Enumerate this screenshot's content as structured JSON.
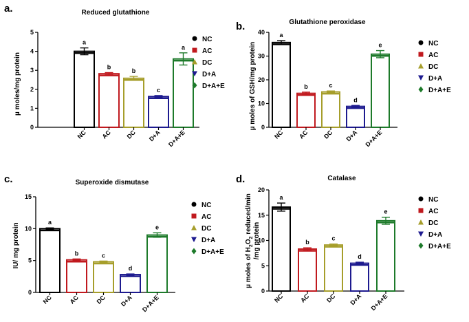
{
  "legend": {
    "entries": [
      "NC",
      "AC",
      "DC",
      "D+A",
      "D+A+E"
    ],
    "colors": [
      "#000000",
      "#c0191e",
      "#a69e2b",
      "#1d1a8f",
      "#1d7a2a"
    ],
    "markers": [
      "circle",
      "square",
      "triangle",
      "triangle-down",
      "diamond"
    ]
  },
  "chart_data": [
    {
      "letter": "a.",
      "type": "bar",
      "title": "Reduced glutathione",
      "ylabel": "µ moles/mg protein",
      "categories": [
        "NC",
        "AC",
        "DC",
        "D+A",
        "D+A+E"
      ],
      "values": [
        4.0,
        2.82,
        2.58,
        1.62,
        3.6
      ],
      "errors": [
        0.18,
        0.06,
        0.1,
        0.05,
        0.32
      ],
      "significance": [
        "a",
        "b",
        "b",
        "c",
        "a"
      ],
      "ylim": [
        0,
        5
      ],
      "yticks": [
        0,
        1,
        2,
        3,
        4,
        5
      ]
    },
    {
      "letter": "b.",
      "type": "bar",
      "title": "Glutathione peroxidase",
      "ylabel": "µ moles of GSH/mg protein",
      "categories": [
        "NC",
        "AC",
        "DC",
        "D+A",
        "D+A+E"
      ],
      "values": [
        35.7,
        14.3,
        14.9,
        8.8,
        30.8
      ],
      "errors": [
        0.8,
        0.5,
        0.4,
        0.4,
        1.5
      ],
      "significance": [
        "a",
        "b",
        "c",
        "d",
        "e"
      ],
      "ylim": [
        0,
        40
      ],
      "yticks": [
        0,
        10,
        20,
        30,
        40
      ]
    },
    {
      "letter": "c.",
      "type": "bar",
      "title": "Superoxide dismutase",
      "ylabel": "IU/ mg protein",
      "categories": [
        "NC",
        "AC",
        "DC",
        "D+A",
        "D+A+E"
      ],
      "values": [
        10.0,
        5.1,
        4.8,
        2.8,
        9.0
      ],
      "errors": [
        0.12,
        0.15,
        0.12,
        0.1,
        0.35
      ],
      "significance": [
        "a",
        "b",
        "c",
        "d",
        "e"
      ],
      "ylim": [
        0,
        15
      ],
      "yticks": [
        0,
        5,
        10,
        15
      ]
    },
    {
      "letter": "d.",
      "type": "bar",
      "title": "Catalase",
      "ylabel_line1": "µ moles of H",
      "ylabel_sub1": "2",
      "ylabel_mid": "O",
      "ylabel_sub2": "2",
      "ylabel_rest": " reduced/min",
      "ylabel_line2": "/mg protein",
      "categories": [
        "NC",
        "AC",
        "DC",
        "D+A",
        "D+A+E"
      ],
      "values": [
        16.6,
        8.3,
        9.1,
        5.5,
        13.9
      ],
      "errors": [
        0.8,
        0.25,
        0.2,
        0.2,
        0.7
      ],
      "significance": [
        "a",
        "b",
        "c",
        "d",
        "e"
      ],
      "ylim": [
        0,
        20
      ],
      "yticks": [
        0,
        5,
        10,
        15,
        20
      ]
    }
  ]
}
